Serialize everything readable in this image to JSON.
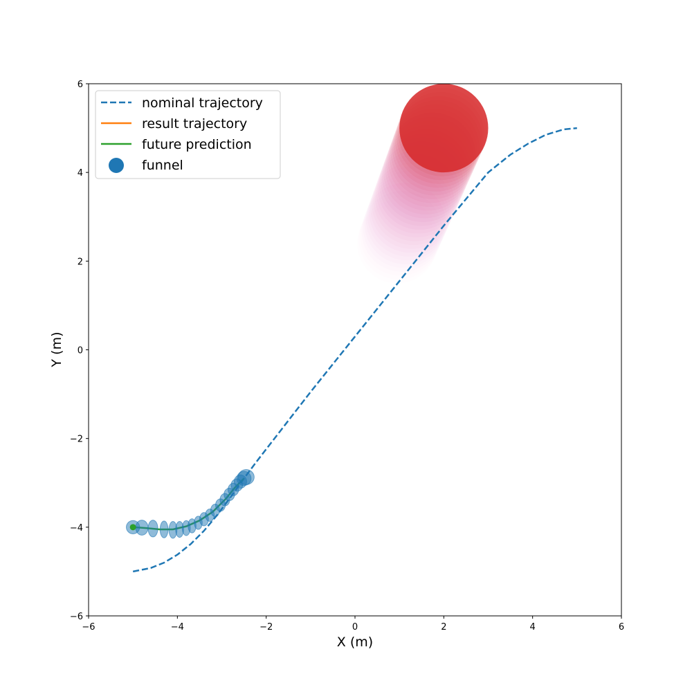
{
  "chart_data": {
    "type": "line",
    "xlabel": "X (m)",
    "ylabel": "Y (m)",
    "xlim": [
      -6,
      6
    ],
    "ylim": [
      -6,
      6
    ],
    "xticks": [
      -6,
      -4,
      -2,
      0,
      2,
      4,
      6
    ],
    "yticks": [
      -6,
      -4,
      -2,
      0,
      2,
      4,
      6
    ],
    "xtick_labels": [
      "−6",
      "−4",
      "−2",
      "0",
      "2",
      "4",
      "6"
    ],
    "ytick_labels": [
      "−6",
      "−4",
      "−2",
      "0",
      "2",
      "4",
      "6"
    ],
    "grid": false,
    "legend_position": "upper-left",
    "legend": [
      {
        "label": "nominal trajectory",
        "style": "dashed-line",
        "color": "#1f77b4"
      },
      {
        "label": "result trajectory",
        "style": "line",
        "color": "#ff7f0e"
      },
      {
        "label": "future prediction",
        "style": "line",
        "color": "#2ca02c"
      },
      {
        "label": "funnel",
        "style": "marker",
        "color": "#1f77b4"
      }
    ],
    "series": [
      {
        "name": "nominal trajectory",
        "color": "#1f77b4",
        "style": "dashed",
        "points": [
          [
            -5.0,
            -5.0
          ],
          [
            -4.6,
            -4.92
          ],
          [
            -4.3,
            -4.8
          ],
          [
            -4.0,
            -4.62
          ],
          [
            -3.7,
            -4.38
          ],
          [
            -3.4,
            -4.08
          ],
          [
            -3.1,
            -3.72
          ],
          [
            -2.8,
            -3.32
          ],
          [
            -2.5,
            -2.9
          ],
          [
            -2.2,
            -2.5
          ],
          [
            -1.0,
            -0.95
          ],
          [
            0.0,
            0.3
          ],
          [
            1.0,
            1.55
          ],
          [
            2.0,
            2.8
          ],
          [
            3.0,
            4.0
          ],
          [
            3.5,
            4.4
          ],
          [
            3.9,
            4.65
          ],
          [
            4.3,
            4.85
          ],
          [
            4.7,
            4.97
          ],
          [
            5.0,
            5.0
          ]
        ]
      },
      {
        "name": "result trajectory",
        "color": "#ff7f0e",
        "style": "solid",
        "points": [
          [
            -5.0,
            -4.0
          ]
        ]
      },
      {
        "name": "future prediction",
        "color": "#2ca02c",
        "style": "solid",
        "points": [
          [
            -5.0,
            -4.0
          ],
          [
            -4.7,
            -4.02
          ],
          [
            -4.4,
            -4.05
          ],
          [
            -4.1,
            -4.05
          ],
          [
            -3.8,
            -3.98
          ],
          [
            -3.5,
            -3.85
          ],
          [
            -3.2,
            -3.65
          ],
          [
            -2.9,
            -3.35
          ],
          [
            -2.7,
            -3.1
          ],
          [
            -2.5,
            -2.9
          ]
        ]
      }
    ],
    "start_marker": {
      "x": -5.0,
      "y": -4.0,
      "color": "#2ca02c"
    },
    "funnel": {
      "color": "#1f77b4",
      "opacity": 0.5,
      "ellipses": [
        {
          "x": -5.0,
          "y": -4.0,
          "rx": 0.15,
          "ry": 0.15
        },
        {
          "x": -4.8,
          "y": -4.01,
          "rx": 0.14,
          "ry": 0.17
        },
        {
          "x": -4.55,
          "y": -4.03,
          "rx": 0.11,
          "ry": 0.19
        },
        {
          "x": -4.3,
          "y": -4.05,
          "rx": 0.09,
          "ry": 0.19
        },
        {
          "x": -4.1,
          "y": -4.06,
          "rx": 0.09,
          "ry": 0.19
        },
        {
          "x": -3.95,
          "y": -4.05,
          "rx": 0.09,
          "ry": 0.18
        },
        {
          "x": -3.8,
          "y": -4.02,
          "rx": 0.09,
          "ry": 0.17
        },
        {
          "x": -3.67,
          "y": -3.97,
          "rx": 0.09,
          "ry": 0.16
        },
        {
          "x": -3.53,
          "y": -3.9,
          "rx": 0.09,
          "ry": 0.15
        },
        {
          "x": -3.4,
          "y": -3.82,
          "rx": 0.1,
          "ry": 0.15
        },
        {
          "x": -3.27,
          "y": -3.73,
          "rx": 0.1,
          "ry": 0.14
        },
        {
          "x": -3.15,
          "y": -3.62,
          "rx": 0.1,
          "ry": 0.14
        },
        {
          "x": -3.03,
          "y": -3.5,
          "rx": 0.11,
          "ry": 0.14
        },
        {
          "x": -2.93,
          "y": -3.38,
          "rx": 0.11,
          "ry": 0.14
        },
        {
          "x": -2.83,
          "y": -3.26,
          "rx": 0.12,
          "ry": 0.14
        },
        {
          "x": -2.74,
          "y": -3.15,
          "rx": 0.12,
          "ry": 0.14
        },
        {
          "x": -2.66,
          "y": -3.05,
          "rx": 0.13,
          "ry": 0.14
        },
        {
          "x": -2.58,
          "y": -2.97,
          "rx": 0.14,
          "ry": 0.15
        },
        {
          "x": -2.5,
          "y": -2.9,
          "rx": 0.16,
          "ry": 0.16
        },
        {
          "x": -2.45,
          "y": -2.87,
          "rx": 0.18,
          "ry": 0.17
        }
      ]
    },
    "obstacle": {
      "path": [
        [
          0.95,
          2.4
        ],
        [
          2.0,
          5.0
        ]
      ],
      "radius_start": 0.9,
      "radius_end": 1.0,
      "steps": 30,
      "color_start": "#e377c2",
      "color_end": "#d62728"
    }
  }
}
